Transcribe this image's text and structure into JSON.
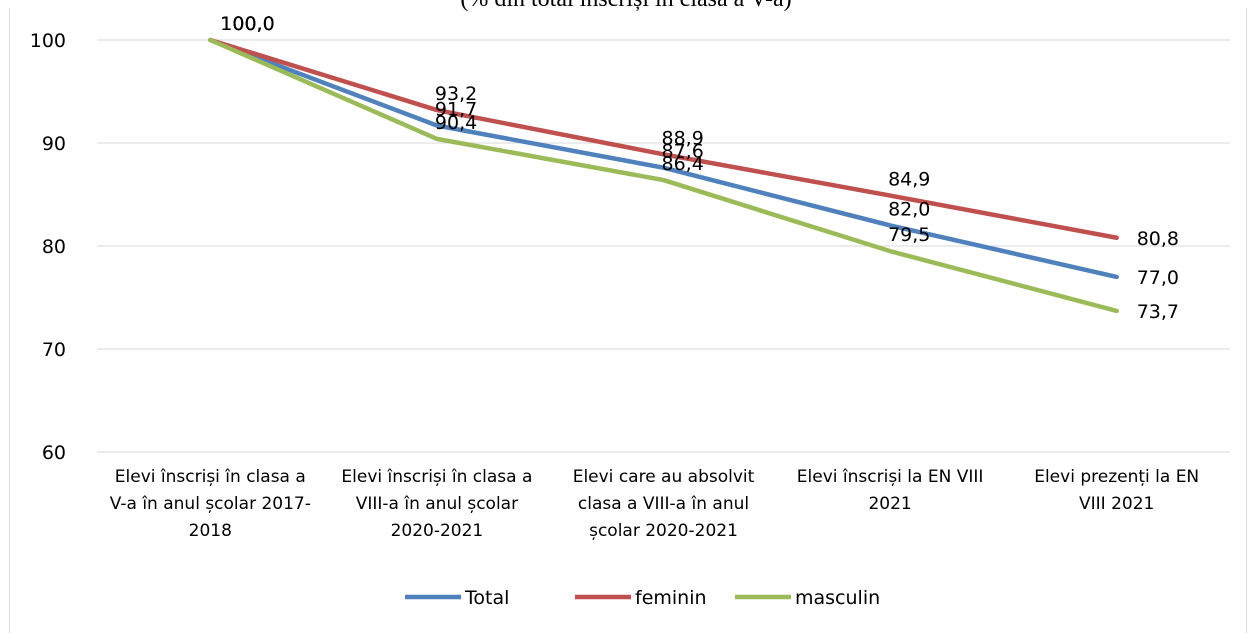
{
  "chart_data": {
    "type": "line",
    "title": "(% din total înscriși în clasa a V-a)",
    "categories": [
      [
        "Elevi înscriși în clasa a",
        "V-a în anul școlar 2017-",
        "2018"
      ],
      [
        "Elevi înscriși în clasa a",
        "VIII-a în anul școlar",
        "2020-2021"
      ],
      [
        "Elevi care au absolvit",
        "clasa a VIII-a în anul",
        "școlar 2020-2021"
      ],
      [
        "Elevi înscriși la EN VIII",
        "2021"
      ],
      [
        "Elevi prezenți la  EN",
        "VIII 2021"
      ]
    ],
    "y_ticks": [
      "60",
      "70",
      "80",
      "90",
      "100"
    ],
    "ylim": [
      60,
      100
    ],
    "grid": true,
    "legend_position": "bottom",
    "series": [
      {
        "name": "Total",
        "color": "#4f81bd",
        "values": [
          100.0,
          91.7,
          87.6,
          82.0,
          77.0
        ],
        "labels": [
          "100,0",
          "91,7",
          "87,6",
          "82,0",
          "77,0"
        ]
      },
      {
        "name": "feminin",
        "color": "#c0504d",
        "values": [
          100.0,
          93.2,
          88.9,
          84.9,
          80.8
        ],
        "labels": [
          "100,0",
          "93,2",
          "88,9",
          "84,9",
          "80,8"
        ]
      },
      {
        "name": "masculin",
        "color": "#9bbb59",
        "values": [
          100.0,
          90.4,
          86.4,
          79.5,
          73.7
        ],
        "labels": [
          "100,0",
          "90,4",
          "86,4",
          "79,5",
          "73,7"
        ]
      }
    ]
  }
}
